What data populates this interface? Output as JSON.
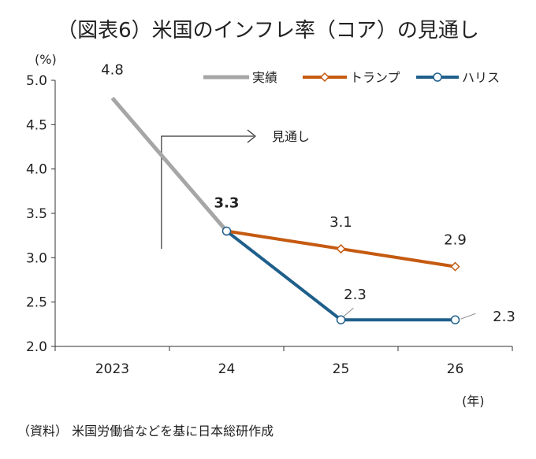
{
  "title": "（図表6）米国のインフレ率（コア）の見通し",
  "y_unit": "(%)",
  "x_unit": "(年)",
  "source": "（資料） 米国労働省などを基に日本総研作成",
  "forecast_label": "見通し",
  "colors": {
    "actual": "#a6a6a6",
    "trump": "#c55a11",
    "harris": "#1f5f8b"
  },
  "chart_data": {
    "type": "line",
    "categories": [
      "2023",
      "24",
      "25",
      "26"
    ],
    "ylim": [
      2.0,
      5.0
    ],
    "yticks": [
      "5.0",
      "4.5",
      "4.0",
      "3.5",
      "3.0",
      "2.5",
      "2.0"
    ],
    "series": [
      {
        "name": "実績",
        "x": [
          "2023",
          "24"
        ],
        "values": [
          4.8,
          3.3
        ]
      },
      {
        "name": "トランプ",
        "x": [
          "24",
          "25",
          "26"
        ],
        "values": [
          3.3,
          3.1,
          2.9
        ]
      },
      {
        "name": "ハリス",
        "x": [
          "24",
          "25",
          "26"
        ],
        "values": [
          3.3,
          2.3,
          2.3
        ]
      }
    ],
    "data_labels": [
      {
        "text": "4.8",
        "series": "実績",
        "x": "2023"
      },
      {
        "text": "3.3",
        "series": "実績",
        "x": "24",
        "bold": true
      },
      {
        "text": "3.1",
        "series": "トランプ",
        "x": "25"
      },
      {
        "text": "2.9",
        "series": "トランプ",
        "x": "26"
      },
      {
        "text": "2.3",
        "series": "ハリス",
        "x": "25"
      },
      {
        "text": "2.3",
        "series": "ハリス",
        "x": "26"
      }
    ],
    "legend_position": "top-right"
  }
}
